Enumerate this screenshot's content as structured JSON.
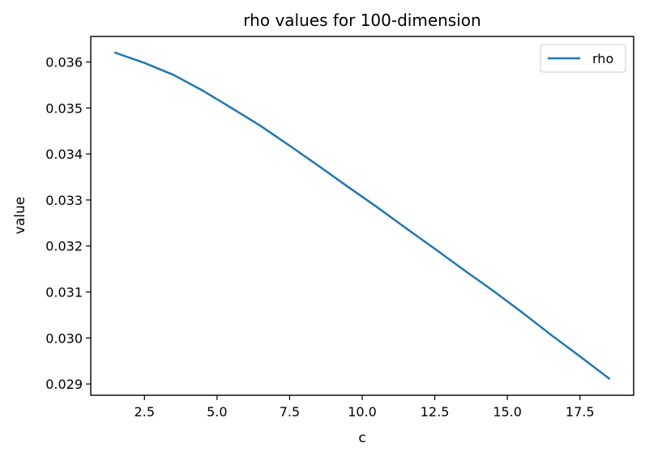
{
  "chart_data": {
    "type": "line",
    "title": "rho values for 100-dimension",
    "xlabel": "c",
    "ylabel": "value",
    "xlim": [
      0.65,
      19.35
    ],
    "ylim": [
      0.028755,
      0.036555
    ],
    "x_ticks": [
      2.5,
      5.0,
      7.5,
      10.0,
      12.5,
      15.0,
      17.5
    ],
    "x_tick_labels": [
      "2.5",
      "5.0",
      "7.5",
      "10.0",
      "12.5",
      "15.0",
      "17.5"
    ],
    "y_ticks": [
      0.029,
      0.03,
      0.031,
      0.032,
      0.033,
      0.034,
      0.035,
      0.036
    ],
    "y_tick_labels": [
      "0.029",
      "0.030",
      "0.031",
      "0.032",
      "0.033",
      "0.034",
      "0.035",
      "0.036"
    ],
    "legend": {
      "position": "top-right",
      "entries": [
        "rho"
      ]
    },
    "grid": false,
    "series": [
      {
        "name": "rho",
        "color": "#1f77b4",
        "x": [
          1.5,
          2.5,
          3.5,
          4.5,
          5.5,
          6.5,
          7.5,
          8.5,
          9.5,
          10.5,
          11.5,
          12.5,
          13.5,
          14.5,
          15.5,
          16.5,
          17.5,
          18.5
        ],
        "values": [
          0.0362,
          0.03598,
          0.03572,
          0.03538,
          0.035,
          0.03461,
          0.03418,
          0.03374,
          0.03329,
          0.03285,
          0.03239,
          0.03194,
          0.03148,
          0.03103,
          0.03056,
          0.03007,
          0.0296,
          0.02912
        ]
      }
    ]
  }
}
